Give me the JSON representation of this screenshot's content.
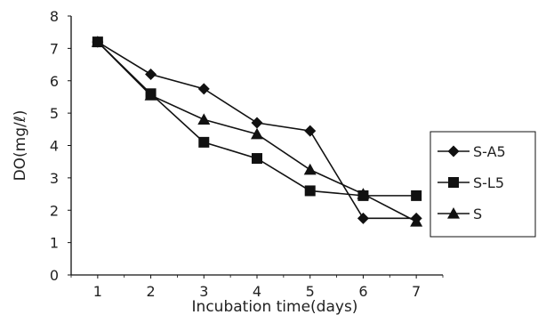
{
  "chart_data": {
    "type": "line",
    "x": [
      1,
      2,
      3,
      4,
      5,
      6,
      7
    ],
    "xlabel": "Incubation time(days)",
    "ylabel": "DO(mg/ℓ)",
    "ylim": [
      0,
      8
    ],
    "xticks": [
      "1",
      "2",
      "3",
      "4",
      "5",
      "6",
      "7"
    ],
    "yticks": [
      "0",
      "1",
      "2",
      "3",
      "4",
      "5",
      "6",
      "7",
      "8"
    ],
    "grid": false,
    "legend_position": "right",
    "series": [
      {
        "name": "S-A5",
        "marker": "diamond",
        "values": [
          7.2,
          6.2,
          5.75,
          4.7,
          4.45,
          1.75,
          1.75
        ]
      },
      {
        "name": "S-L5",
        "marker": "square",
        "values": [
          7.2,
          5.6,
          4.1,
          3.6,
          2.6,
          2.45,
          2.45
        ]
      },
      {
        "name": "S",
        "marker": "triangle",
        "values": [
          7.2,
          5.55,
          4.8,
          4.35,
          3.25,
          2.5,
          1.65
        ]
      }
    ],
    "color": "#111111"
  }
}
